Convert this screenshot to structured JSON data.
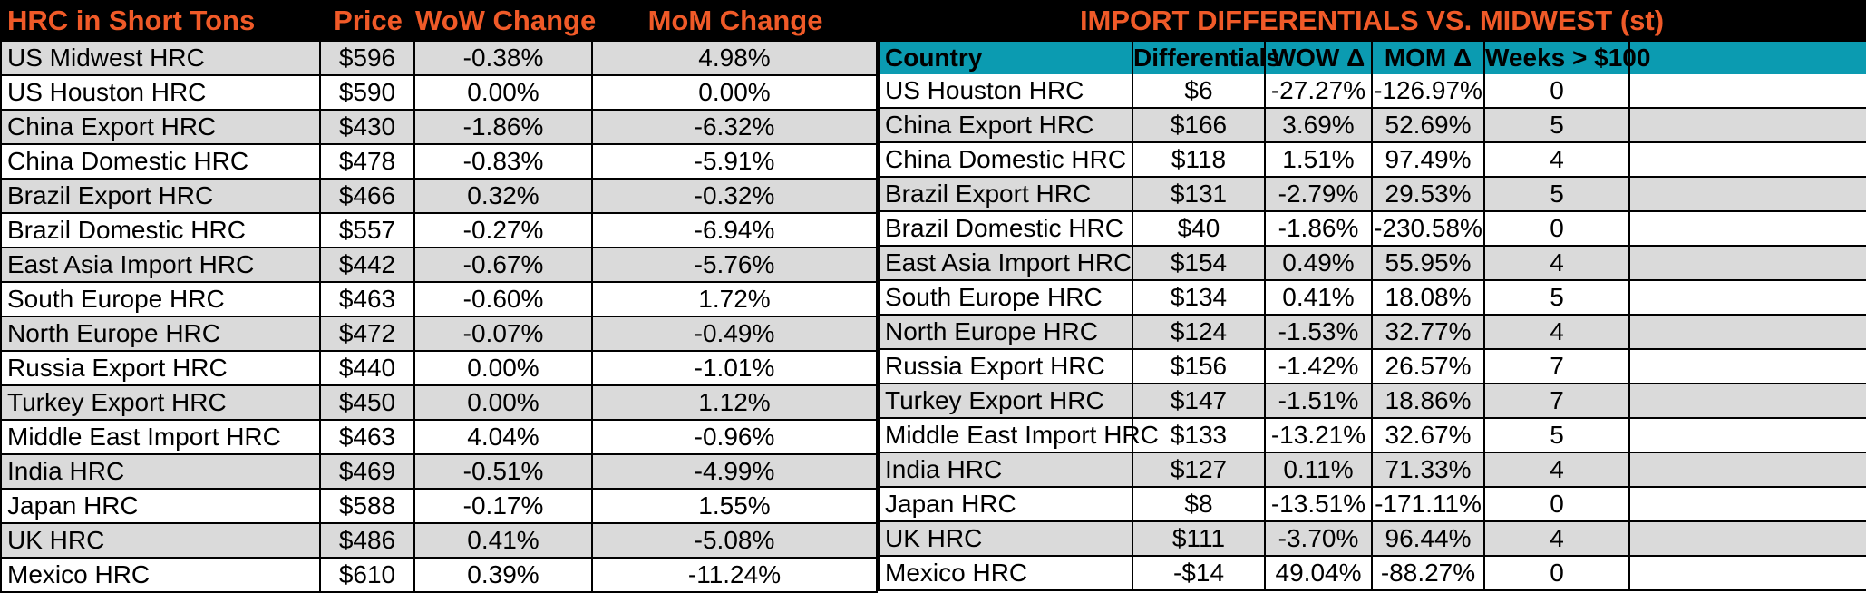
{
  "left_table": {
    "headers": [
      "HRC in Short Tons",
      "Price",
      "WoW Change",
      "MoM Change"
    ],
    "rows": [
      [
        "US Midwest HRC",
        "$596",
        "-0.38%",
        "4.98%"
      ],
      [
        "US Houston HRC",
        "$590",
        "0.00%",
        "0.00%"
      ],
      [
        "China Export HRC",
        "$430",
        "-1.86%",
        "-6.32%"
      ],
      [
        "China Domestic HRC",
        "$478",
        "-0.83%",
        "-5.91%"
      ],
      [
        "Brazil Export HRC",
        "$466",
        "0.32%",
        "-0.32%"
      ],
      [
        "Brazil Domestic HRC",
        "$557",
        "-0.27%",
        "-6.94%"
      ],
      [
        "East Asia Import HRC",
        "$442",
        "-0.67%",
        "-5.76%"
      ],
      [
        "South Europe HRC",
        "$463",
        "-0.60%",
        "1.72%"
      ],
      [
        "North Europe HRC",
        "$472",
        "-0.07%",
        "-0.49%"
      ],
      [
        "Russia Export HRC",
        "$440",
        "0.00%",
        "-1.01%"
      ],
      [
        "Turkey Export HRC",
        "$450",
        "0.00%",
        "1.12%"
      ],
      [
        "Middle East Import HRC",
        "$463",
        "4.04%",
        "-0.96%"
      ],
      [
        "India HRC",
        "$469",
        "-0.51%",
        "-4.99%"
      ],
      [
        "Japan HRC",
        "$588",
        "-0.17%",
        "1.55%"
      ],
      [
        "UK HRC",
        "$486",
        "0.41%",
        "-5.08%"
      ],
      [
        "Mexico HRC",
        "$610",
        "0.39%",
        "-11.24%"
      ]
    ]
  },
  "right_table": {
    "title": "IMPORT DIFFERENTIALS VS. MIDWEST (st)",
    "headers": [
      "Country",
      "Differentials",
      "WOW Δ",
      "MOM Δ",
      "Weeks > $100"
    ],
    "rows": [
      [
        "US Houston HRC",
        "$6",
        "-27.27%",
        "-126.97%",
        "0"
      ],
      [
        "China Export HRC",
        "$166",
        "3.69%",
        "52.69%",
        "5"
      ],
      [
        "China Domestic HRC",
        "$118",
        "1.51%",
        "97.49%",
        "4"
      ],
      [
        "Brazil Export HRC",
        "$131",
        "-2.79%",
        "29.53%",
        "5"
      ],
      [
        "Brazil Domestic HRC",
        "$40",
        "-1.86%",
        "-230.58%",
        "0"
      ],
      [
        "East Asia Import HRC",
        "$154",
        "0.49%",
        "55.95%",
        "4"
      ],
      [
        "South Europe HRC",
        "$134",
        "0.41%",
        "18.08%",
        "5"
      ],
      [
        "North Europe HRC",
        "$124",
        "-1.53%",
        "32.77%",
        "4"
      ],
      [
        "Russia Export HRC",
        "$156",
        "-1.42%",
        "26.57%",
        "7"
      ],
      [
        "Turkey Export HRC",
        "$147",
        "-1.51%",
        "18.86%",
        "7"
      ],
      [
        "Middle East Import HRC",
        "$133",
        "-13.21%",
        "32.67%",
        "5"
      ],
      [
        "India HRC",
        "$127",
        "0.11%",
        "71.33%",
        "4"
      ],
      [
        "Japan HRC",
        "$8",
        "-13.51%",
        "-171.11%",
        "0"
      ],
      [
        "UK HRC",
        "$111",
        "-3.70%",
        "96.44%",
        "4"
      ],
      [
        "Mexico HRC",
        "-$14",
        "49.04%",
        "-88.27%",
        "0"
      ]
    ]
  },
  "colors": {
    "header_bg": "#000000",
    "header_text": "#f05a28",
    "subheader_bg": "#0b9bb1",
    "row_shade": "#dadada"
  }
}
